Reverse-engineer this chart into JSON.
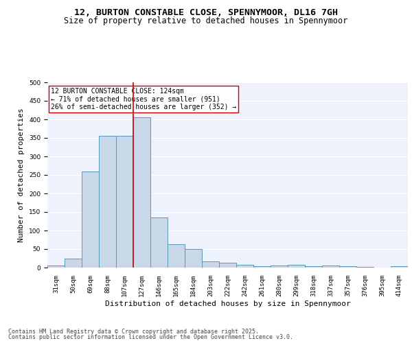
{
  "title": "12, BURTON CONSTABLE CLOSE, SPENNYMOOR, DL16 7GH",
  "subtitle": "Size of property relative to detached houses in Spennymoor",
  "xlabel": "Distribution of detached houses by size in Spennymoor",
  "ylabel": "Number of detached properties",
  "categories": [
    "31sqm",
    "50sqm",
    "69sqm",
    "88sqm",
    "107sqm",
    "127sqm",
    "146sqm",
    "165sqm",
    "184sqm",
    "203sqm",
    "222sqm",
    "242sqm",
    "261sqm",
    "280sqm",
    "299sqm",
    "318sqm",
    "337sqm",
    "357sqm",
    "376sqm",
    "395sqm",
    "414sqm"
  ],
  "values": [
    5,
    25,
    260,
    355,
    355,
    405,
    135,
    63,
    50,
    17,
    13,
    7,
    3,
    5,
    7,
    3,
    5,
    3,
    1,
    0,
    3
  ],
  "bar_color": "#c8d8e8",
  "bar_edge_color": "#5599bb",
  "vline_index": 5,
  "vline_color": "#cc0000",
  "annotation_text": "12 BURTON CONSTABLE CLOSE: 124sqm\n← 71% of detached houses are smaller (951)\n26% of semi-detached houses are larger (352) →",
  "annotation_box_facecolor": "#ffffff",
  "annotation_box_edgecolor": "#cc0000",
  "ylim": [
    0,
    500
  ],
  "yticks": [
    0,
    50,
    100,
    150,
    200,
    250,
    300,
    350,
    400,
    450,
    500
  ],
  "background_color": "#eef2fc",
  "grid_color": "#ffffff",
  "footer_line1": "Contains HM Land Registry data © Crown copyright and database right 2025.",
  "footer_line2": "Contains public sector information licensed under the Open Government Licence v3.0.",
  "title_fontsize": 9.5,
  "subtitle_fontsize": 8.5,
  "tick_fontsize": 6.5,
  "ylabel_fontsize": 8,
  "xlabel_fontsize": 8,
  "annotation_fontsize": 7,
  "footer_fontsize": 6
}
